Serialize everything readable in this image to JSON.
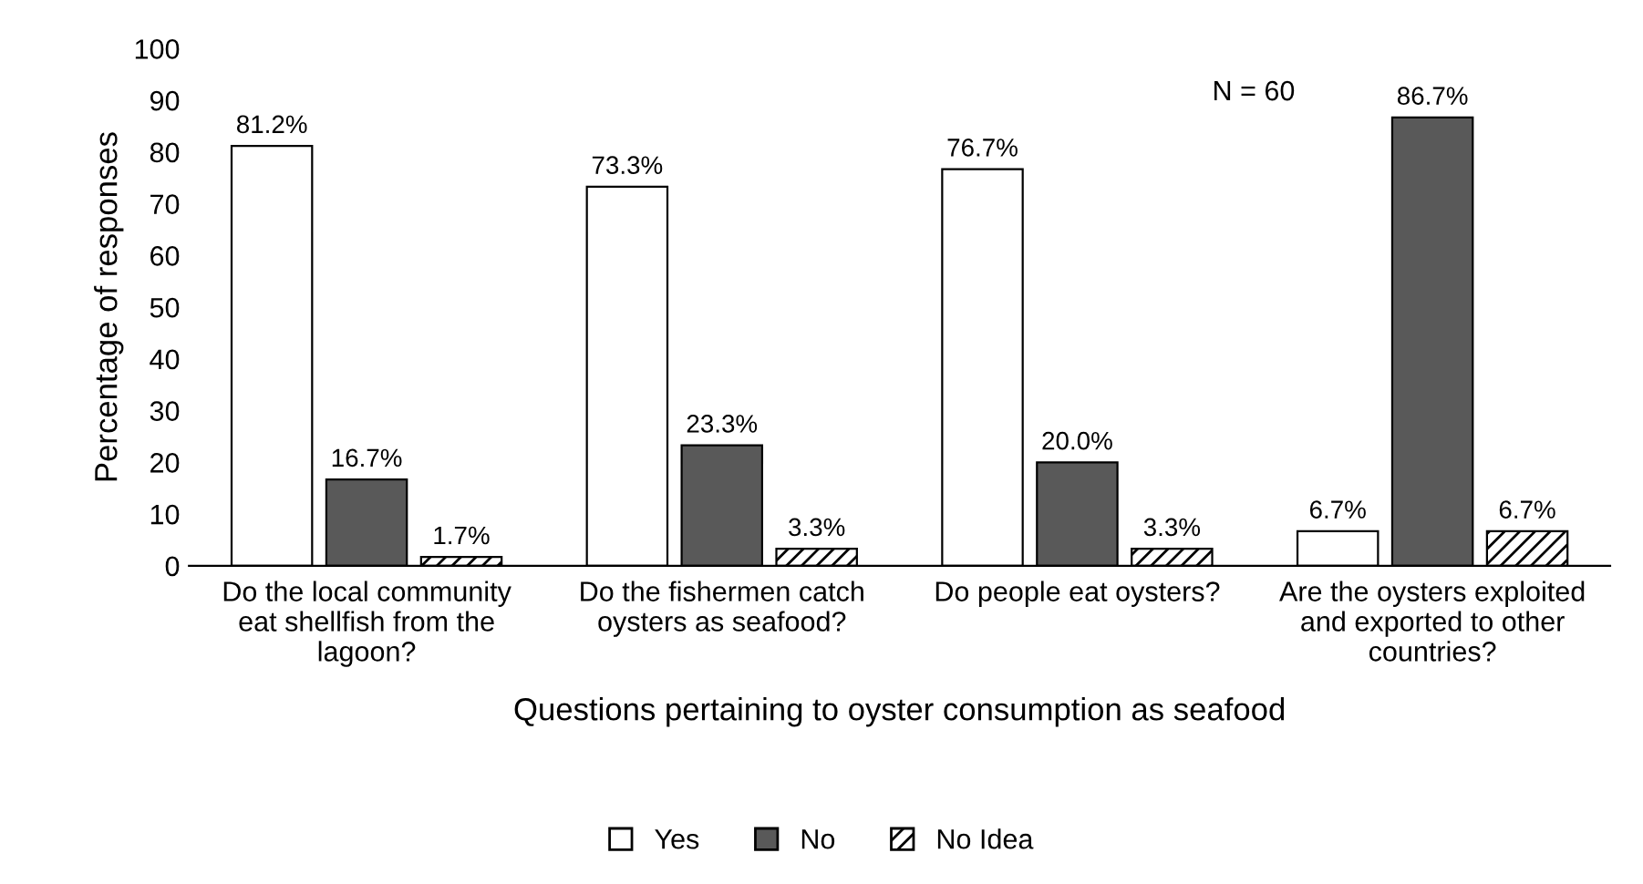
{
  "chart_data": {
    "type": "bar",
    "xlabel": "Questions pertaining to oyster consumption as seafood",
    "ylabel": "Percentage of responses",
    "categories": [
      "Do the local community eat shellfish from the lagoon?",
      "Do the fishermen catch oysters as seafood?",
      "Do people eat oysters?",
      "Are the oysters exploited and exported to other countries?"
    ],
    "series": [
      {
        "name": "Yes",
        "color": "#ffffff",
        "values": [
          81.2,
          73.3,
          76.7,
          6.7
        ],
        "value_labels": [
          "81.2%",
          "73.3%",
          "76.7%",
          "6.7%"
        ]
      },
      {
        "name": "No",
        "color": "#595959",
        "values": [
          16.7,
          23.3,
          20.0,
          86.7
        ],
        "value_labels": [
          "16.7%",
          "23.3%",
          "20.0%",
          "86.7%"
        ]
      },
      {
        "name": "No Idea",
        "color": "#000000",
        "values": [
          1.7,
          3.3,
          3.3,
          6.7
        ],
        "value_labels": [
          "1.7%",
          "3.3%",
          "3.3%",
          "6.7%"
        ]
      }
    ],
    "ylim": [
      0,
      100
    ],
    "yticks": [
      0,
      10,
      20,
      30,
      40,
      50,
      60,
      70,
      80,
      90,
      100
    ],
    "annotations": [
      {
        "text": "N = 60"
      }
    ],
    "grid": false,
    "legend": "bottom"
  }
}
